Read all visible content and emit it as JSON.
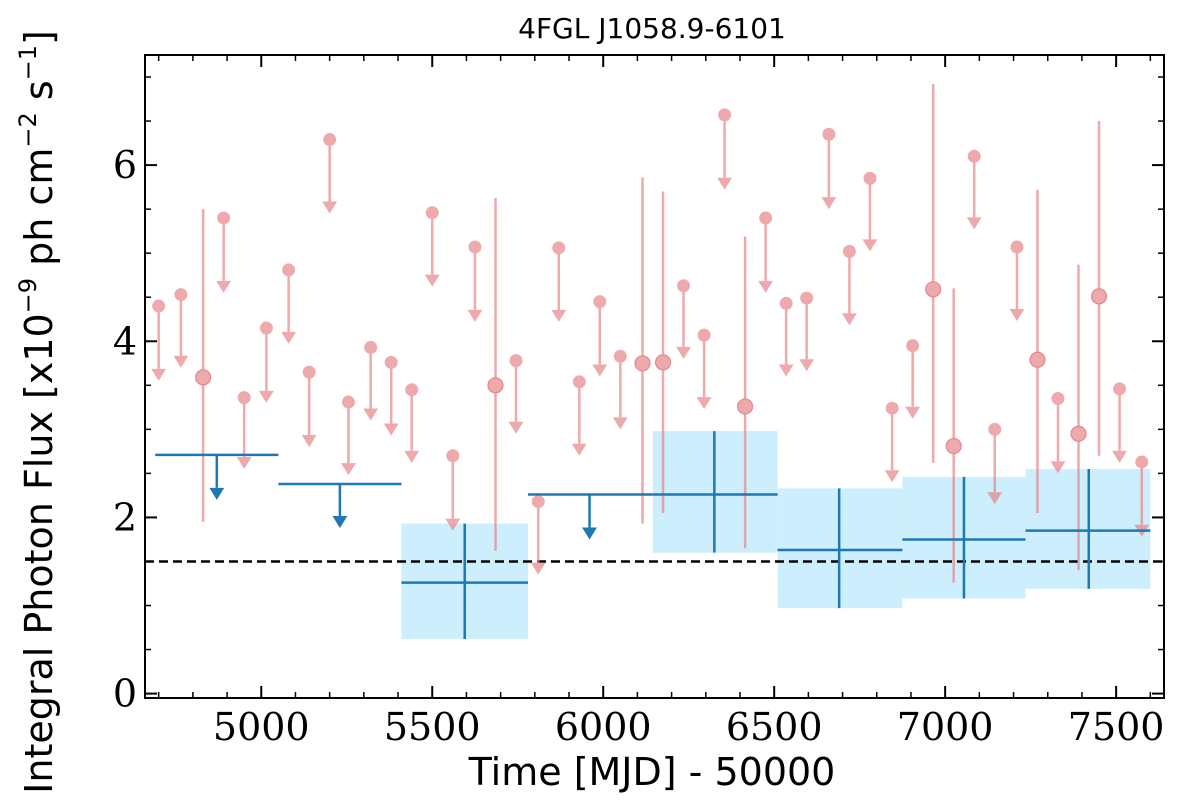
{
  "chart_data": {
    "type": "scatter",
    "title": "4FGL J1058.9-6101",
    "xlabel": "Time [MJD] - 50000",
    "ylabel": "Integral Photon Flux [x10",
    "ylabel_exp": "−9",
    "ylabel_mid": " ph cm",
    "ylabel_exp2": "−2",
    "ylabel_mid2": " s",
    "ylabel_exp3": "−1",
    "ylabel_end": "]",
    "xlim": [
      4660,
      7640
    ],
    "ylim": [
      -0.05,
      7.25
    ],
    "xticks": [
      5000,
      5500,
      6000,
      6500,
      7000,
      7500
    ],
    "xtick_labels": [
      "5000",
      "5500",
      "6000",
      "6500",
      "7000",
      "7500"
    ],
    "yticks": [
      0,
      2,
      4,
      6
    ],
    "ytick_labels": [
      "0",
      "2",
      "4",
      "6"
    ],
    "grid": false,
    "reference_line": {
      "y": 1.5,
      "style": "dashed",
      "color": "#000000"
    },
    "colors": {
      "fine_bins": "#e8868a",
      "coarse_bins": "#1f77b4",
      "coarse_band": "#cdeefc"
    },
    "series": [
      {
        "color": "#e8868a",
        "upper_limits": [
          {
            "x": 4700,
            "y": 4.4,
            "tip": 3.55
          },
          {
            "x": 4765,
            "y": 4.53,
            "tip": 3.7
          },
          {
            "x": 4890,
            "y": 5.4,
            "tip": 4.55
          },
          {
            "x": 4950,
            "y": 3.36,
            "tip": 2.55
          },
          {
            "x": 5015,
            "y": 4.15,
            "tip": 3.3
          },
          {
            "x": 5080,
            "y": 4.81,
            "tip": 3.97
          },
          {
            "x": 5140,
            "y": 3.65,
            "tip": 2.8
          },
          {
            "x": 5200,
            "y": 6.29,
            "tip": 5.45
          },
          {
            "x": 5255,
            "y": 3.31,
            "tip": 2.48
          },
          {
            "x": 5320,
            "y": 3.93,
            "tip": 3.1
          },
          {
            "x": 5380,
            "y": 3.76,
            "tip": 2.93
          },
          {
            "x": 5440,
            "y": 3.45,
            "tip": 2.62
          },
          {
            "x": 5500,
            "y": 5.46,
            "tip": 4.62
          },
          {
            "x": 5560,
            "y": 2.7,
            "tip": 1.85
          },
          {
            "x": 5625,
            "y": 5.07,
            "tip": 4.22
          },
          {
            "x": 5745,
            "y": 3.78,
            "tip": 2.95
          },
          {
            "x": 5810,
            "y": 2.18,
            "tip": 1.35
          },
          {
            "x": 5870,
            "y": 5.06,
            "tip": 4.22
          },
          {
            "x": 5930,
            "y": 3.54,
            "tip": 2.7
          },
          {
            "x": 5990,
            "y": 4.45,
            "tip": 3.6
          },
          {
            "x": 6050,
            "y": 3.83,
            "tip": 3.0
          },
          {
            "x": 6235,
            "y": 4.63,
            "tip": 3.8
          },
          {
            "x": 6295,
            "y": 4.07,
            "tip": 3.23
          },
          {
            "x": 6355,
            "y": 6.57,
            "tip": 5.72
          },
          {
            "x": 6475,
            "y": 5.4,
            "tip": 4.55
          },
          {
            "x": 6535,
            "y": 4.43,
            "tip": 3.6
          },
          {
            "x": 6595,
            "y": 4.49,
            "tip": 3.66
          },
          {
            "x": 6660,
            "y": 6.35,
            "tip": 5.5
          },
          {
            "x": 6720,
            "y": 5.02,
            "tip": 4.18
          },
          {
            "x": 6780,
            "y": 5.85,
            "tip": 5.02
          },
          {
            "x": 6845,
            "y": 3.24,
            "tip": 2.4
          },
          {
            "x": 6905,
            "y": 3.95,
            "tip": 3.12
          },
          {
            "x": 7085,
            "y": 6.1,
            "tip": 5.27
          },
          {
            "x": 7145,
            "y": 3.0,
            "tip": 2.15
          },
          {
            "x": 7210,
            "y": 5.07,
            "tip": 4.23
          },
          {
            "x": 7330,
            "y": 3.35,
            "tip": 2.5
          },
          {
            "x": 7510,
            "y": 3.46,
            "tip": 2.62
          },
          {
            "x": 7575,
            "y": 2.63,
            "tip": 1.78
          }
        ],
        "detections": [
          {
            "x": 4830,
            "y": 3.59,
            "ylo": 1.95,
            "yhi": 5.5
          },
          {
            "x": 5685,
            "y": 3.5,
            "ylo": 1.62,
            "yhi": 5.63
          },
          {
            "x": 6115,
            "y": 3.75,
            "ylo": 1.93,
            "yhi": 5.86
          },
          {
            "x": 6175,
            "y": 3.76,
            "ylo": 2.05,
            "yhi": 5.7
          },
          {
            "x": 6415,
            "y": 3.26,
            "ylo": 1.65,
            "yhi": 5.19
          },
          {
            "x": 6965,
            "y": 4.59,
            "ylo": 2.62,
            "yhi": 6.92
          },
          {
            "x": 7025,
            "y": 2.81,
            "ylo": 1.26,
            "yhi": 4.6
          },
          {
            "x": 7270,
            "y": 3.79,
            "ylo": 2.05,
            "yhi": 5.72
          },
          {
            "x": 7390,
            "y": 2.95,
            "ylo": 1.4,
            "yhi": 4.87
          },
          {
            "x": 7450,
            "y": 4.51,
            "ylo": 2.7,
            "yhi": 6.5
          }
        ]
      },
      {
        "color": "#1f77b4",
        "upper_limits": [
          {
            "x": 4870,
            "xlo": 4690,
            "xhi": 5050,
            "y": 2.71,
            "tip": 2.2
          },
          {
            "x": 5230,
            "xlo": 5050,
            "xhi": 5410,
            "y": 2.38,
            "tip": 1.88
          },
          {
            "x": 5960,
            "xlo": 5780,
            "xhi": 6145,
            "y": 2.26,
            "tip": 1.75
          }
        ],
        "detections": [
          {
            "x": 5595,
            "xlo": 5410,
            "xhi": 5780,
            "y": 1.26,
            "ylo": 0.62,
            "yhi": 1.93
          },
          {
            "x": 6325,
            "xlo": 6145,
            "xhi": 6510,
            "y": 2.26,
            "ylo": 1.6,
            "yhi": 2.98
          },
          {
            "x": 6690,
            "xlo": 6510,
            "xhi": 6875,
            "y": 1.63,
            "ylo": 0.97,
            "yhi": 2.33
          },
          {
            "x": 7055,
            "xlo": 6875,
            "xhi": 7235,
            "y": 1.75,
            "ylo": 1.08,
            "yhi": 2.46
          },
          {
            "x": 7420,
            "xlo": 7235,
            "xhi": 7600,
            "y": 1.85,
            "ylo": 1.19,
            "yhi": 2.55
          }
        ]
      }
    ]
  }
}
